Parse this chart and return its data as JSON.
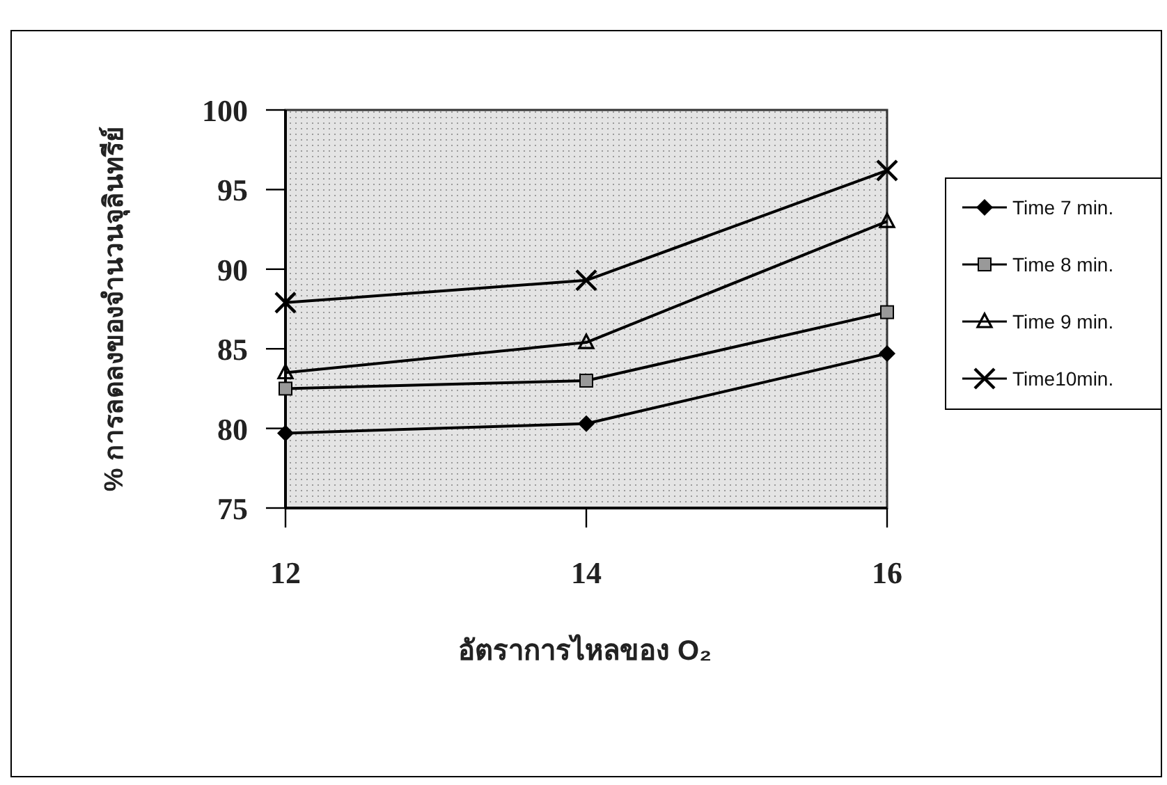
{
  "chart_data": {
    "type": "line",
    "xlabel": "อัตราการไหลของ O₂",
    "ylabel": "% การลดลงของจำนวนจุลินทรีย์",
    "x": [
      12,
      14,
      16
    ],
    "xlim": [
      12,
      16
    ],
    "xticks": [
      12,
      14,
      16
    ],
    "ylim": [
      75,
      100
    ],
    "yticks": [
      75,
      80,
      85,
      90,
      95,
      100
    ],
    "grid": false,
    "legend": "right",
    "line_style": "solid",
    "series": [
      {
        "name": "Time 7 min.",
        "color": "#000000",
        "marker": "diamond",
        "values": [
          79.7,
          80.3,
          84.7
        ]
      },
      {
        "name": "Time 8 min.",
        "color": "#000000",
        "marker": "square",
        "values": [
          82.5,
          83.0,
          87.3
        ]
      },
      {
        "name": "Time 9 min.",
        "color": "#000000",
        "marker": "triangle",
        "values": [
          83.5,
          85.4,
          93.0
        ]
      },
      {
        "name": "Time10min.",
        "color": "#000000",
        "marker": "cross",
        "values": [
          87.9,
          89.3,
          96.2
        ]
      }
    ]
  }
}
